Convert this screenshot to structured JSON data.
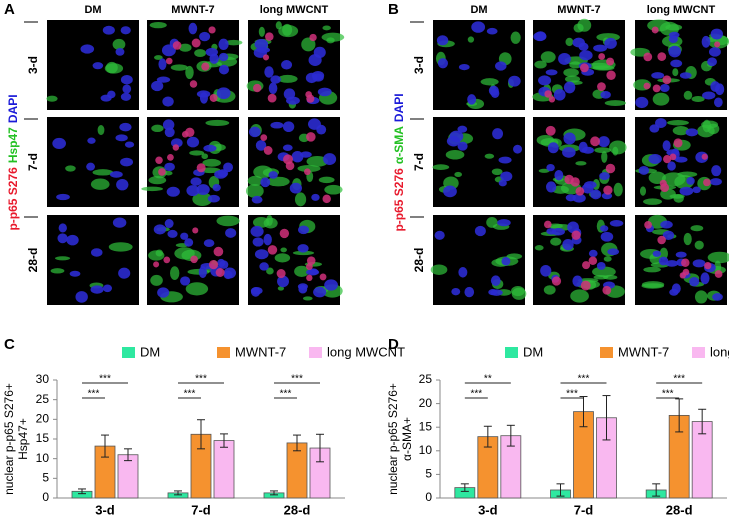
{
  "panels": [
    {
      "letter": "A",
      "columns": [
        "DM",
        "MWNT-7",
        "long MWCNT"
      ],
      "rows": [
        "3-d",
        "7-d",
        "28-d"
      ],
      "stain": [
        {
          "text": "p-p65 S276",
          "color": "#e8192c"
        },
        {
          "text": "Hsp47",
          "color": "#22c022"
        },
        {
          "text": "DAPI",
          "color": "#1a1ad8"
        }
      ]
    },
    {
      "letter": "B",
      "columns": [
        "DM",
        "MWNT-7",
        "long MWCNT"
      ],
      "rows": [
        "3-d",
        "7-d",
        "28-d"
      ],
      "stain": [
        {
          "text": "p-p65 S276",
          "color": "#e8192c"
        },
        {
          "text": "α-SMA",
          "color": "#22c022"
        },
        {
          "text": "DAPI",
          "color": "#1a1ad8"
        }
      ]
    }
  ],
  "chart_data": [
    {
      "type": "bar",
      "letter": "C",
      "ylabel_lines": [
        "nuclear p-p65 S276+",
        "Hsp47+"
      ],
      "categories": [
        "3-d",
        "7-d",
        "28-d"
      ],
      "series": [
        {
          "name": "DM",
          "color": "#2ee8a0",
          "values": [
            1.7,
            1.3,
            1.3
          ],
          "errors": [
            0.6,
            0.5,
            0.5
          ]
        },
        {
          "name": "MWNT-7",
          "color": "#f5922f",
          "values": [
            13.2,
            16.2,
            14.0
          ],
          "errors": [
            2.8,
            3.7,
            2.0
          ]
        },
        {
          "name": "long MWCNT",
          "color": "#f9b8f0",
          "values": [
            11.0,
            14.6,
            12.7
          ],
          "errors": [
            1.5,
            1.7,
            3.5
          ]
        }
      ],
      "annotations": [
        {
          "text": "***",
          "category": "3-d",
          "series": "MWNT-7"
        },
        {
          "text": "***",
          "category": "3-d",
          "series": "long MWCNT"
        },
        {
          "text": "***",
          "category": "7-d",
          "series": "MWNT-7"
        },
        {
          "text": "***",
          "category": "7-d",
          "series": "long MWCNT"
        },
        {
          "text": "***",
          "category": "28-d",
          "series": "MWNT-7"
        },
        {
          "text": "***",
          "category": "28-d",
          "series": "long MWCNT"
        }
      ],
      "ylim": [
        0,
        30
      ],
      "yticks": [
        0,
        5,
        10,
        15,
        20,
        25,
        30
      ]
    },
    {
      "type": "bar",
      "letter": "D",
      "ylabel_lines": [
        "nuclear p-p65 S276+",
        "α-SMA+"
      ],
      "categories": [
        "3-d",
        "7-d",
        "28-d"
      ],
      "series": [
        {
          "name": "DM",
          "color": "#2ee8a0",
          "values": [
            2.2,
            1.7,
            1.7
          ],
          "errors": [
            0.8,
            1.3,
            1.3
          ]
        },
        {
          "name": "MWNT-7",
          "color": "#f5922f",
          "values": [
            13.0,
            18.3,
            17.5
          ],
          "errors": [
            2.2,
            3.2,
            3.5
          ]
        },
        {
          "name": "long MWCNT",
          "color": "#f9b8f0",
          "values": [
            13.2,
            17.0,
            16.2
          ],
          "errors": [
            2.2,
            4.7,
            2.6
          ]
        }
      ],
      "annotations": [
        {
          "text": "***",
          "category": "3-d",
          "series": "MWNT-7"
        },
        {
          "text": "**",
          "category": "3-d",
          "series": "long MWCNT"
        },
        {
          "text": "***",
          "category": "7-d",
          "series": "MWNT-7"
        },
        {
          "text": "***",
          "category": "7-d",
          "series": "long MWCNT"
        },
        {
          "text": "***",
          "category": "28-d",
          "series": "MWNT-7"
        },
        {
          "text": "***",
          "category": "28-d",
          "series": "long MWCNT"
        }
      ],
      "ylim": [
        0,
        25
      ],
      "yticks": [
        0,
        5,
        10,
        15,
        20,
        25
      ]
    }
  ]
}
